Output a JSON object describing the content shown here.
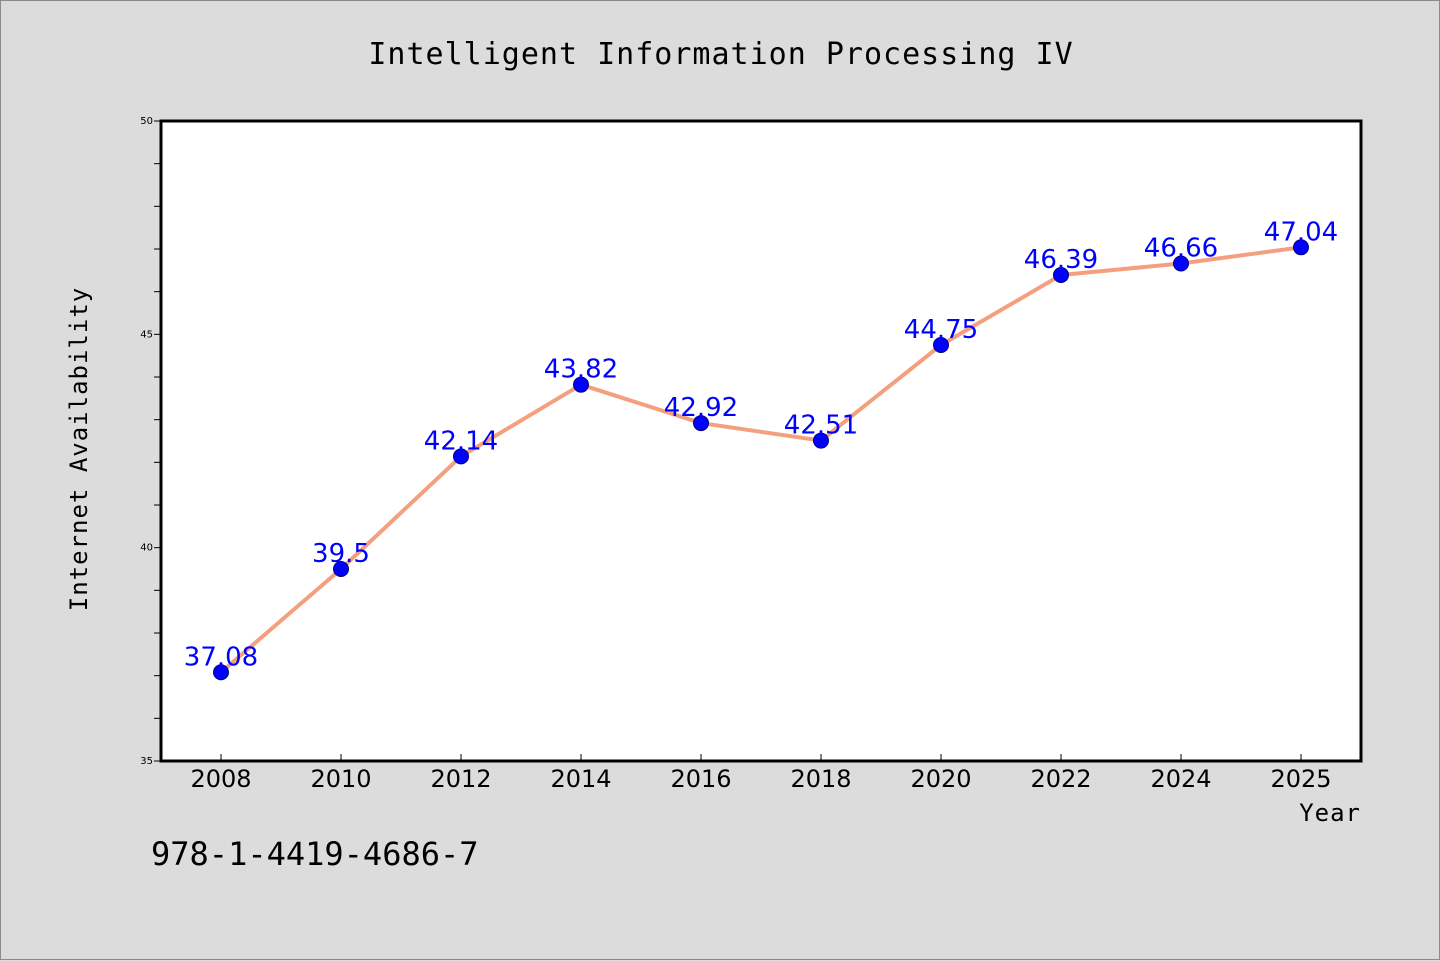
{
  "chart_data": {
    "type": "line",
    "title": "Intelligent Information Processing IV",
    "xlabel": "Year",
    "ylabel": "Internet Availability",
    "categories": [
      "2008",
      "2010",
      "2012",
      "2014",
      "2016",
      "2018",
      "2020",
      "2022",
      "2024",
      "2025"
    ],
    "series": [
      {
        "values": [
          37.08,
          39.5,
          42.14,
          43.82,
          42.92,
          42.51,
          44.75,
          46.39,
          46.66,
          47.04
        ],
        "labels": [
          "37.08",
          "39.5",
          "42.14",
          "43.82",
          "42.92",
          "42.51",
          "44.75",
          "46.39",
          "46.66",
          "47.04"
        ]
      }
    ],
    "ylim": [
      35,
      50
    ],
    "yticks": [
      "35",
      "40",
      "45",
      "50"
    ],
    "grid": false,
    "legend": "none",
    "colors": {
      "line": "#f4a07f",
      "marker_fill": "#0000ff",
      "marker_stroke": "#00007a",
      "data_label": "#0000ff",
      "plot_bg": "#ffffff",
      "page_bg": "#dcdcdc"
    }
  },
  "footer": {
    "isbn": "978-1-4419-4686-7"
  }
}
